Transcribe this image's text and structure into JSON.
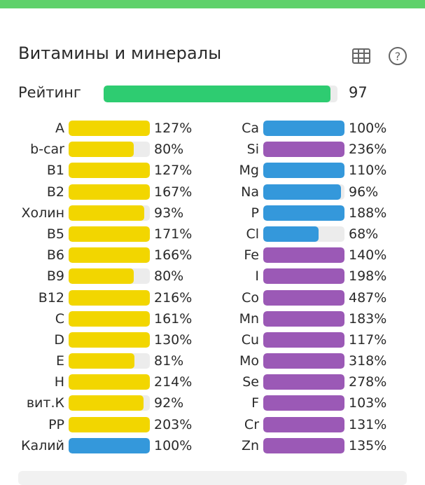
{
  "colors": {
    "top_bar": "#5fd16b",
    "rating": "#2ecc71",
    "vitamin": "#f2d600",
    "blue": "#3498db",
    "purple": "#9b59b6",
    "track": "#ececec"
  },
  "header": {
    "title": "Витамины и минералы",
    "table_icon": "table-icon",
    "help_icon": "help-icon"
  },
  "rating": {
    "label": "Рейтинг",
    "value": 97,
    "value_text": "97"
  },
  "left": [
    {
      "label": "A",
      "pct": 127,
      "text": "127%",
      "color": "yellow"
    },
    {
      "label": "b-car",
      "pct": 80,
      "text": "80%",
      "color": "yellow"
    },
    {
      "label": "B1",
      "pct": 127,
      "text": "127%",
      "color": "yellow"
    },
    {
      "label": "B2",
      "pct": 167,
      "text": "167%",
      "color": "yellow"
    },
    {
      "label": "Холин",
      "pct": 93,
      "text": "93%",
      "color": "yellow"
    },
    {
      "label": "B5",
      "pct": 171,
      "text": "171%",
      "color": "yellow"
    },
    {
      "label": "B6",
      "pct": 166,
      "text": "166%",
      "color": "yellow"
    },
    {
      "label": "B9",
      "pct": 80,
      "text": "80%",
      "color": "yellow"
    },
    {
      "label": "B12",
      "pct": 216,
      "text": "216%",
      "color": "yellow"
    },
    {
      "label": "C",
      "pct": 161,
      "text": "161%",
      "color": "yellow"
    },
    {
      "label": "D",
      "pct": 130,
      "text": "130%",
      "color": "yellow"
    },
    {
      "label": "E",
      "pct": 81,
      "text": "81%",
      "color": "yellow"
    },
    {
      "label": "H",
      "pct": 214,
      "text": "214%",
      "color": "yellow"
    },
    {
      "label": "вит.К",
      "pct": 92,
      "text": "92%",
      "color": "yellow"
    },
    {
      "label": "PP",
      "pct": 203,
      "text": "203%",
      "color": "yellow"
    },
    {
      "label": "Калий",
      "pct": 100,
      "text": "100%",
      "color": "blue"
    }
  ],
  "right": [
    {
      "label": "Ca",
      "pct": 100,
      "text": "100%",
      "color": "blue"
    },
    {
      "label": "Si",
      "pct": 236,
      "text": "236%",
      "color": "purple"
    },
    {
      "label": "Mg",
      "pct": 110,
      "text": "110%",
      "color": "blue"
    },
    {
      "label": "Na",
      "pct": 96,
      "text": "96%",
      "color": "blue"
    },
    {
      "label": "P",
      "pct": 188,
      "text": "188%",
      "color": "blue"
    },
    {
      "label": "Cl",
      "pct": 68,
      "text": "68%",
      "color": "blue"
    },
    {
      "label": "Fe",
      "pct": 140,
      "text": "140%",
      "color": "purple"
    },
    {
      "label": "I",
      "pct": 198,
      "text": "198%",
      "color": "purple"
    },
    {
      "label": "Co",
      "pct": 487,
      "text": "487%",
      "color": "purple"
    },
    {
      "label": "Mn",
      "pct": 183,
      "text": "183%",
      "color": "purple"
    },
    {
      "label": "Cu",
      "pct": 117,
      "text": "117%",
      "color": "purple"
    },
    {
      "label": "Mo",
      "pct": 318,
      "text": "318%",
      "color": "purple"
    },
    {
      "label": "Se",
      "pct": 278,
      "text": "278%",
      "color": "purple"
    },
    {
      "label": "F",
      "pct": 103,
      "text": "103%",
      "color": "purple"
    },
    {
      "label": "Cr",
      "pct": 131,
      "text": "131%",
      "color": "purple"
    },
    {
      "label": "Zn",
      "pct": 135,
      "text": "135%",
      "color": "purple"
    }
  ]
}
